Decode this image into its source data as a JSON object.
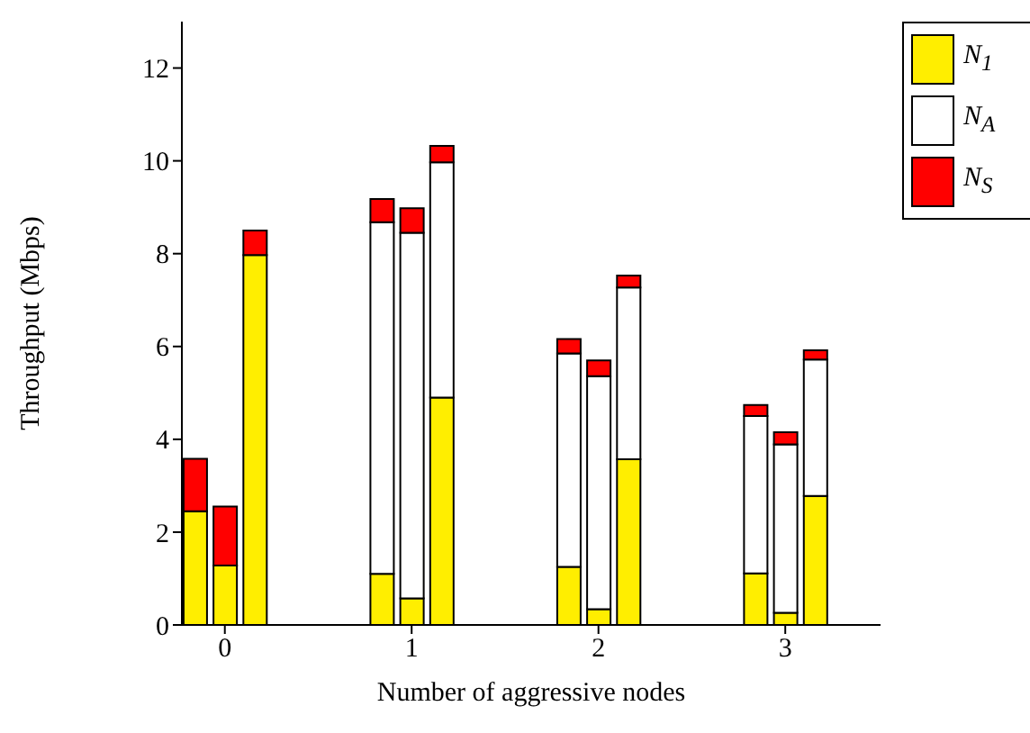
{
  "chart_data": {
    "type": "bar",
    "stacked": true,
    "xlabel": "Number of aggressive nodes",
    "ylabel": "Throughput (Mbps)",
    "x": [
      -0.16,
      0,
      0.16,
      0.84,
      1,
      1.16,
      1.84,
      2,
      2.16,
      2.84,
      3,
      3.16
    ],
    "xlim": [
      -0.23,
      3.51
    ],
    "xticks": [
      0,
      1,
      2,
      3
    ],
    "ylim": [
      0,
      13
    ],
    "yticks": [
      0,
      2,
      4,
      6,
      8,
      10,
      12
    ],
    "legend": "top right",
    "series": [
      {
        "name": "N$_{1}$",
        "color": "#ffee00",
        "values": [
          2.45,
          1.28,
          7.97,
          1.1,
          0.57,
          4.9,
          1.25,
          0.34,
          3.57,
          1.11,
          0.26,
          2.78
        ]
      },
      {
        "name": "N$_{A}$",
        "color": "#ffffff",
        "values": [
          0,
          0,
          0,
          7.58,
          7.88,
          5.07,
          4.6,
          5.02,
          3.7,
          3.39,
          3.63,
          2.94
        ]
      },
      {
        "name": "N$_{S}$",
        "color": "#ff0000",
        "values": [
          1.13,
          1.27,
          0.53,
          0.5,
          0.53,
          0.35,
          0.31,
          0.34,
          0.26,
          0.24,
          0.26,
          0.2
        ]
      }
    ]
  }
}
